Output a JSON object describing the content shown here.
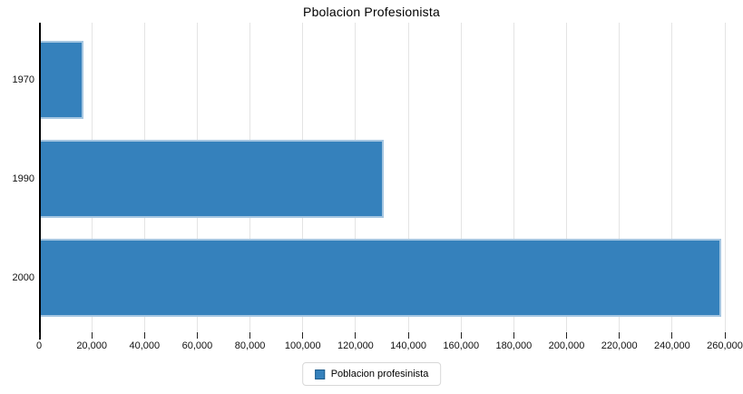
{
  "chart_data": {
    "type": "bar",
    "orientation": "horizontal",
    "title": "Pbolacion Profesionista",
    "categories": [
      "1970",
      "1990",
      "2000"
    ],
    "series": [
      {
        "name": "Poblacion profesinista",
        "values": [
          17000,
          130800,
          258500
        ]
      }
    ],
    "xlabel": "",
    "ylabel": "",
    "xlim": [
      0,
      260000
    ],
    "x_ticks": [
      0,
      20000,
      40000,
      60000,
      80000,
      100000,
      120000,
      140000,
      160000,
      180000,
      200000,
      220000,
      240000,
      260000
    ],
    "x_tick_labels": [
      "0",
      "20,000",
      "40,000",
      "60,000",
      "80,000",
      "100,000",
      "120,000",
      "140,000",
      "160,000",
      "180,000",
      "200,000",
      "220,000",
      "240,000",
      "260,000"
    ],
    "grid": "vertical-only",
    "legend_position": "bottom-center",
    "colors": {
      "bar_fill": "#3581bc",
      "bar_stroke": "#a5c6e1",
      "swatch_border": "#1f5d8c",
      "gridline": "#e4e4e4",
      "axis": "#000000"
    }
  }
}
